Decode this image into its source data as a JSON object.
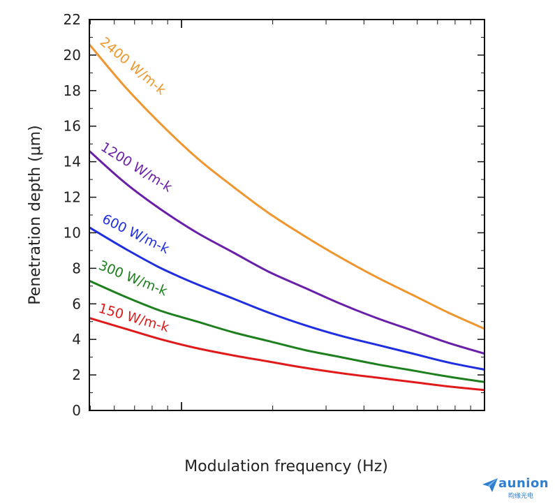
{
  "chart_data": {
    "type": "line",
    "title": "",
    "xlabel": "Modulation frequency (Hz)",
    "ylabel": "Penetration depth (μm)",
    "x_scale": "log",
    "ylim": [
      0,
      22
    ],
    "y_ticks": [
      0,
      2,
      4,
      6,
      8,
      10,
      12,
      14,
      16,
      18,
      20,
      22
    ],
    "x_tick_labels_shown": false,
    "series": [
      {
        "name": "2400 W/m-k",
        "color": "#f0962e",
        "values": [
          20.6,
          18.2,
          16.1,
          14.2,
          12.6,
          11.1,
          9.8,
          8.6,
          7.5,
          6.5,
          5.5,
          4.6
        ]
      },
      {
        "name": "1200 W/m-k",
        "color": "#6a1fa8",
        "values": [
          14.6,
          12.8,
          11.3,
          10.0,
          8.9,
          7.8,
          6.9,
          6.0,
          5.2,
          4.5,
          3.8,
          3.2
        ]
      },
      {
        "name": "600 W/m-k",
        "color": "#1f2ee0",
        "values": [
          10.3,
          9.1,
          8.0,
          7.1,
          6.3,
          5.5,
          4.8,
          4.2,
          3.7,
          3.2,
          2.7,
          2.3
        ]
      },
      {
        "name": "300 W/m-k",
        "color": "#1e7f1e",
        "values": [
          7.3,
          6.4,
          5.6,
          5.0,
          4.4,
          3.9,
          3.4,
          3.0,
          2.6,
          2.25,
          1.9,
          1.6
        ]
      },
      {
        "name": "150 W/m-k",
        "color": "#e01a1a",
        "values": [
          5.2,
          4.6,
          4.0,
          3.5,
          3.1,
          2.75,
          2.4,
          2.1,
          1.85,
          1.6,
          1.35,
          1.15
        ]
      }
    ]
  },
  "logo": {
    "brand": "aunion",
    "brand_sub": "昀缘光电"
  }
}
